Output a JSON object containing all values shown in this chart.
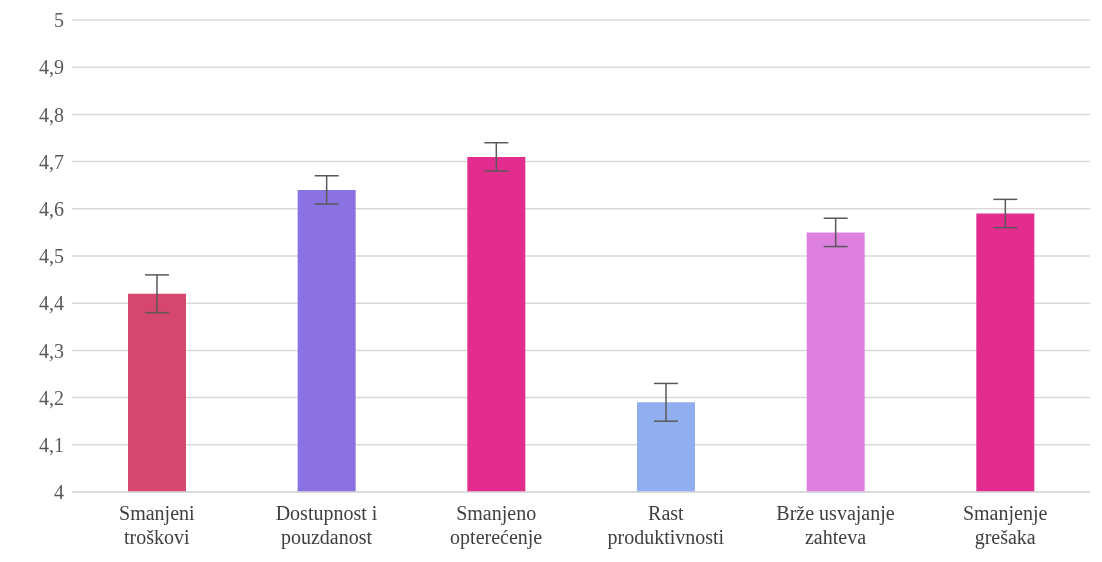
{
  "chart_data": {
    "type": "bar",
    "categories": [
      "Smanjeni troškovi",
      "Dostupnost i pouzdanost",
      "Smanjeno opterećenje",
      "Rast produktivnosti",
      "Brže usvajanje zahteva",
      "Smanjenje grešaka"
    ],
    "values": [
      4.42,
      4.64,
      4.71,
      4.19,
      4.55,
      4.59
    ],
    "errors": [
      0.04,
      0.03,
      0.03,
      0.04,
      0.03,
      0.03
    ],
    "colors": [
      "#d6476f",
      "#8a72e2",
      "#e22d8f",
      "#91aef0",
      "#de80e0",
      "#e22d8f"
    ],
    "ylim": [
      4,
      5
    ],
    "yticks": [
      4,
      {
        "value": 4.1,
        "label": "4,1"
      },
      {
        "value": 4.2,
        "label": "4,2"
      },
      {
        "value": 4.3,
        "label": "4,3"
      },
      {
        "value": 4.4,
        "label": "4,4"
      },
      {
        "value": 4.5,
        "label": "4,5"
      },
      {
        "value": 4.6,
        "label": "4,6"
      },
      {
        "value": 4.7,
        "label": "4,7"
      },
      {
        "value": 4.8,
        "label": "4,8"
      },
      {
        "value": 4.9,
        "label": "4,9"
      },
      5
    ],
    "grid": "y"
  }
}
